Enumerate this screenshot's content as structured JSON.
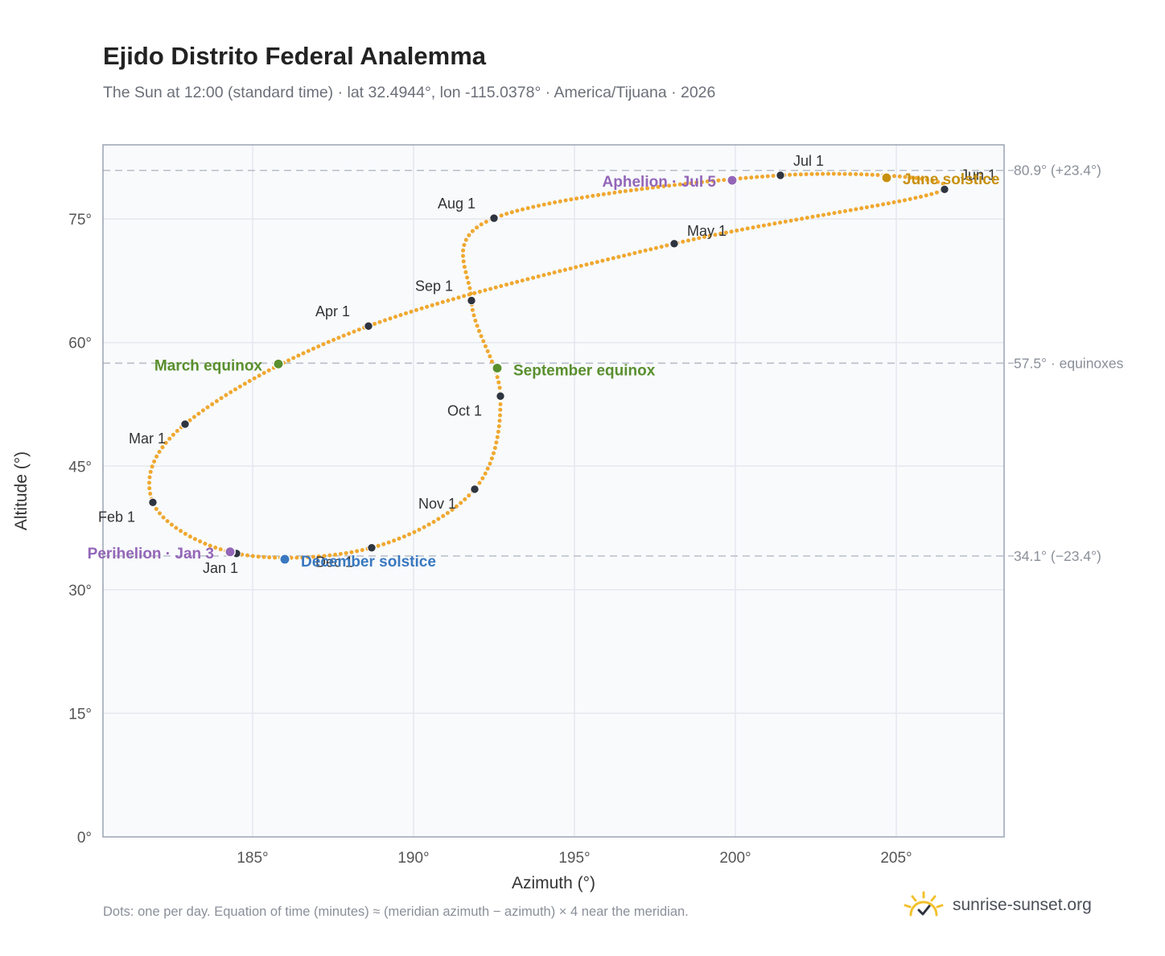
{
  "header": {
    "title": "Ejido Distrito Federal Analemma",
    "subtitle": "The Sun at 12:00 (standard time) · lat 32.4944°, lon -115.0378° · America/Tijuana · 2026"
  },
  "footer": {
    "note": "Dots: one per day. Equation of time (minutes) ≈ (meridian azimuth − azimuth) × 4 near the meridian.",
    "brand": "sunrise-sunset.org"
  },
  "colors": {
    "curve": "#f0a830",
    "month_dot": "#2f3540",
    "equinox": "#5a8f2e",
    "june_solstice": "#c8900e",
    "december_solstice": "#3a78c0",
    "apsis": "#9366b8",
    "reference_line": "#b8bec8",
    "plot_bg": "#f8fafc",
    "frame": "#9aa4b4"
  },
  "chart_data": {
    "type": "scatter",
    "title": "Ejido Distrito Federal Analemma",
    "xlabel": "Azimuth (°)",
    "ylabel": "Altitude (°)",
    "xlim": [
      180.35,
      208.35
    ],
    "ylim": [
      0,
      84
    ],
    "xticks": [
      185,
      190,
      195,
      200,
      205
    ],
    "yticks": [
      0,
      15,
      30,
      45,
      60,
      75
    ],
    "xtick_labels": [
      "185°",
      "190°",
      "195°",
      "200°",
      "205°"
    ],
    "ytick_labels": [
      "0°",
      "15°",
      "30°",
      "45°",
      "60°",
      "75°"
    ],
    "grid": true,
    "reference_lines": [
      {
        "altitude": 80.9,
        "label": "80.9° (+23.4°)"
      },
      {
        "altitude": 57.5,
        "label": "57.5° · equinoxes"
      },
      {
        "altitude": 34.1,
        "label": "34.1° (−23.4°)"
      }
    ],
    "month_markers": [
      {
        "label": "Jan 1",
        "az": 184.5,
        "alt": 34.4
      },
      {
        "label": "Feb 1",
        "az": 181.9,
        "alt": 40.6
      },
      {
        "label": "Mar 1",
        "az": 182.9,
        "alt": 50.1
      },
      {
        "label": "Apr 1",
        "az": 188.6,
        "alt": 62.0
      },
      {
        "label": "May 1",
        "az": 198.1,
        "alt": 72.0
      },
      {
        "label": "Jun 1",
        "az": 206.5,
        "alt": 78.6
      },
      {
        "label": "Jul 1",
        "az": 201.4,
        "alt": 80.3
      },
      {
        "label": "Aug 1",
        "az": 192.5,
        "alt": 75.1
      },
      {
        "label": "Sep 1",
        "az": 191.8,
        "alt": 65.1
      },
      {
        "label": "Oct 1",
        "az": 192.7,
        "alt": 53.5
      },
      {
        "label": "Nov 1",
        "az": 191.9,
        "alt": 42.2
      },
      {
        "label": "Dec 1",
        "az": 188.7,
        "alt": 35.1
      }
    ],
    "events": [
      {
        "label": "March equinox",
        "az": 185.8,
        "alt": 57.4,
        "kind": "equinox"
      },
      {
        "label": "June solstice",
        "az": 204.7,
        "alt": 80.0,
        "kind": "june_solstice"
      },
      {
        "label": "September equinox",
        "az": 192.6,
        "alt": 56.9,
        "kind": "equinox"
      },
      {
        "label": "December solstice",
        "az": 186.0,
        "alt": 33.7,
        "kind": "december_solstice"
      },
      {
        "label": "Perihelion · Jan 3",
        "az": 184.3,
        "alt": 34.6,
        "kind": "apsis"
      },
      {
        "label": "Aphelion · Jul 5",
        "az": 199.9,
        "alt": 79.7,
        "kind": "apsis"
      }
    ]
  }
}
